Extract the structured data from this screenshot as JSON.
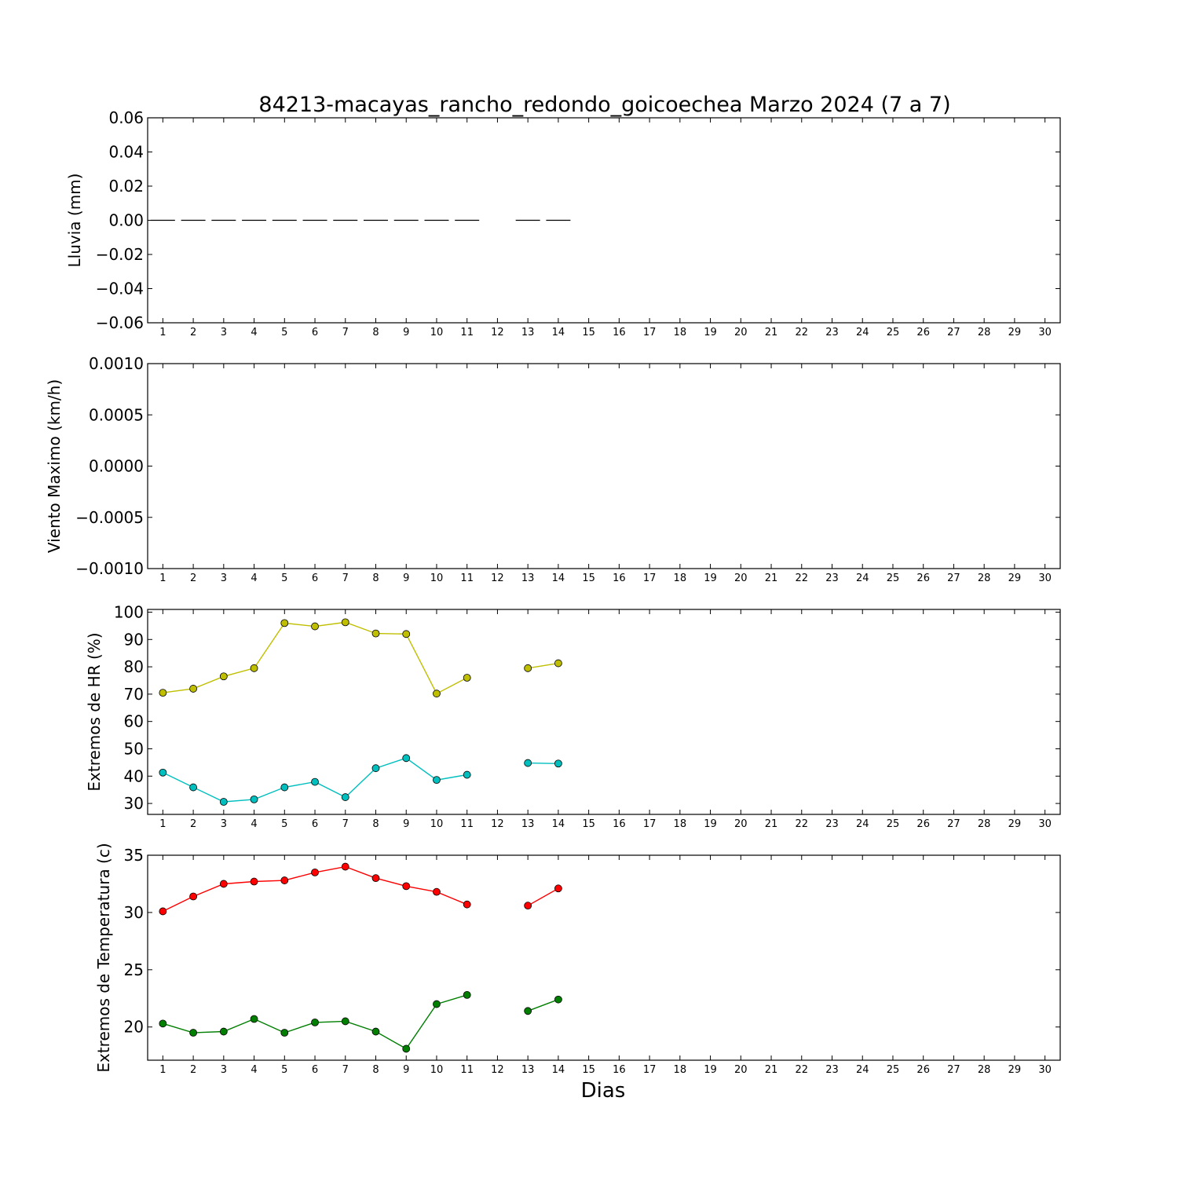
{
  "title": "84213-macayas_rancho_redondo_goicoechea Marzo 2024  (7 a 7)",
  "xlabel": "Dias",
  "x_ticks": [
    1,
    2,
    3,
    4,
    5,
    6,
    7,
    8,
    9,
    10,
    11,
    12,
    13,
    14,
    15,
    16,
    17,
    18,
    19,
    20,
    21,
    22,
    23,
    24,
    25,
    26,
    27,
    28,
    29,
    30
  ],
  "chart_data": [
    {
      "type": "bar",
      "ylabel": "Lluvia (mm)",
      "xlim": [
        0.5,
        30.5
      ],
      "ylim": [
        -0.06,
        0.06
      ],
      "y_ticks": [
        0.06,
        0.04,
        0.02,
        0.0,
        -0.02,
        -0.04,
        -0.06
      ],
      "y_tick_labels": [
        "0.06",
        "0.04",
        "0.02",
        "0.00",
        "−0.02",
        "−0.04",
        "−0.06"
      ],
      "series": [
        {
          "color": "#000000",
          "points": [
            [
              1,
              0
            ],
            [
              2,
              0
            ],
            [
              3,
              0
            ],
            [
              4,
              0
            ],
            [
              5,
              0
            ],
            [
              6,
              0
            ],
            [
              7,
              0
            ],
            [
              8,
              0
            ],
            [
              9,
              0
            ],
            [
              10,
              0
            ],
            [
              11,
              0
            ],
            [
              13,
              0
            ],
            [
              14,
              0
            ]
          ]
        }
      ]
    },
    {
      "type": "line",
      "ylabel": "Viento Maximo (km/h)",
      "xlim": [
        0.5,
        30.5
      ],
      "ylim": [
        -0.001,
        0.001
      ],
      "y_ticks": [
        0.001,
        0.0005,
        0.0,
        -0.0005,
        -0.001
      ],
      "y_tick_labels": [
        "0.0010",
        "0.0005",
        "0.0000",
        "−0.0005",
        "−0.0010"
      ],
      "series": []
    },
    {
      "type": "line",
      "ylabel": "Extremos de HR (%)",
      "xlim": [
        0.5,
        30.5
      ],
      "ylim": [
        26,
        101
      ],
      "y_ticks": [
        100,
        90,
        80,
        70,
        60,
        50,
        40,
        30
      ],
      "y_tick_labels": [
        "100",
        "90",
        "80",
        "70",
        "60",
        "50",
        "40",
        "30"
      ],
      "series": [
        {
          "color": "#bfbf00",
          "points": [
            [
              1,
              70.5
            ],
            [
              2,
              72
            ],
            [
              3,
              76.5
            ],
            [
              4,
              79.5
            ],
            [
              5,
              96
            ],
            [
              6,
              94.8
            ],
            [
              7,
              96.3
            ],
            [
              8,
              92.2
            ],
            [
              9,
              92
            ],
            [
              10,
              70.2
            ],
            [
              11,
              76
            ],
            [
              13,
              79.5
            ],
            [
              14,
              81.3
            ]
          ]
        },
        {
          "color": "#00bfbf",
          "points": [
            [
              1,
              41.3
            ],
            [
              2,
              35.9
            ],
            [
              3,
              30.6
            ],
            [
              4,
              31.5
            ],
            [
              5,
              35.9
            ],
            [
              6,
              37.9
            ],
            [
              7,
              32.3
            ],
            [
              8,
              42.9
            ],
            [
              9,
              46.6
            ],
            [
              10,
              38.6
            ],
            [
              11,
              40.5
            ],
            [
              13,
              44.8
            ],
            [
              14,
              44.6
            ]
          ]
        }
      ]
    },
    {
      "type": "line",
      "ylabel": "Extremos de Temperatura (c)",
      "xlim": [
        0.5,
        30.5
      ],
      "ylim": [
        17.1,
        35
      ],
      "y_ticks": [
        35,
        30,
        25,
        20
      ],
      "y_tick_labels": [
        "35",
        "30",
        "25",
        "20"
      ],
      "series": [
        {
          "color": "#ff0000",
          "points": [
            [
              1,
              30.1
            ],
            [
              2,
              31.4
            ],
            [
              3,
              32.5
            ],
            [
              4,
              32.7
            ],
            [
              5,
              32.8
            ],
            [
              6,
              33.5
            ],
            [
              7,
              34
            ],
            [
              8,
              33
            ],
            [
              9,
              32.3
            ],
            [
              10,
              31.8
            ],
            [
              11,
              30.7
            ],
            [
              13,
              30.6
            ],
            [
              14,
              32.1
            ]
          ]
        },
        {
          "color": "#007f00",
          "points": [
            [
              1,
              20.3
            ],
            [
              2,
              19.5
            ],
            [
              3,
              19.6
            ],
            [
              4,
              20.7
            ],
            [
              5,
              19.5
            ],
            [
              6,
              20.4
            ],
            [
              7,
              20.5
            ],
            [
              8,
              19.6
            ],
            [
              9,
              18.1
            ],
            [
              10,
              22
            ],
            [
              11,
              22.8
            ],
            [
              13,
              21.4
            ],
            [
              14,
              22.4
            ]
          ]
        }
      ]
    }
  ]
}
